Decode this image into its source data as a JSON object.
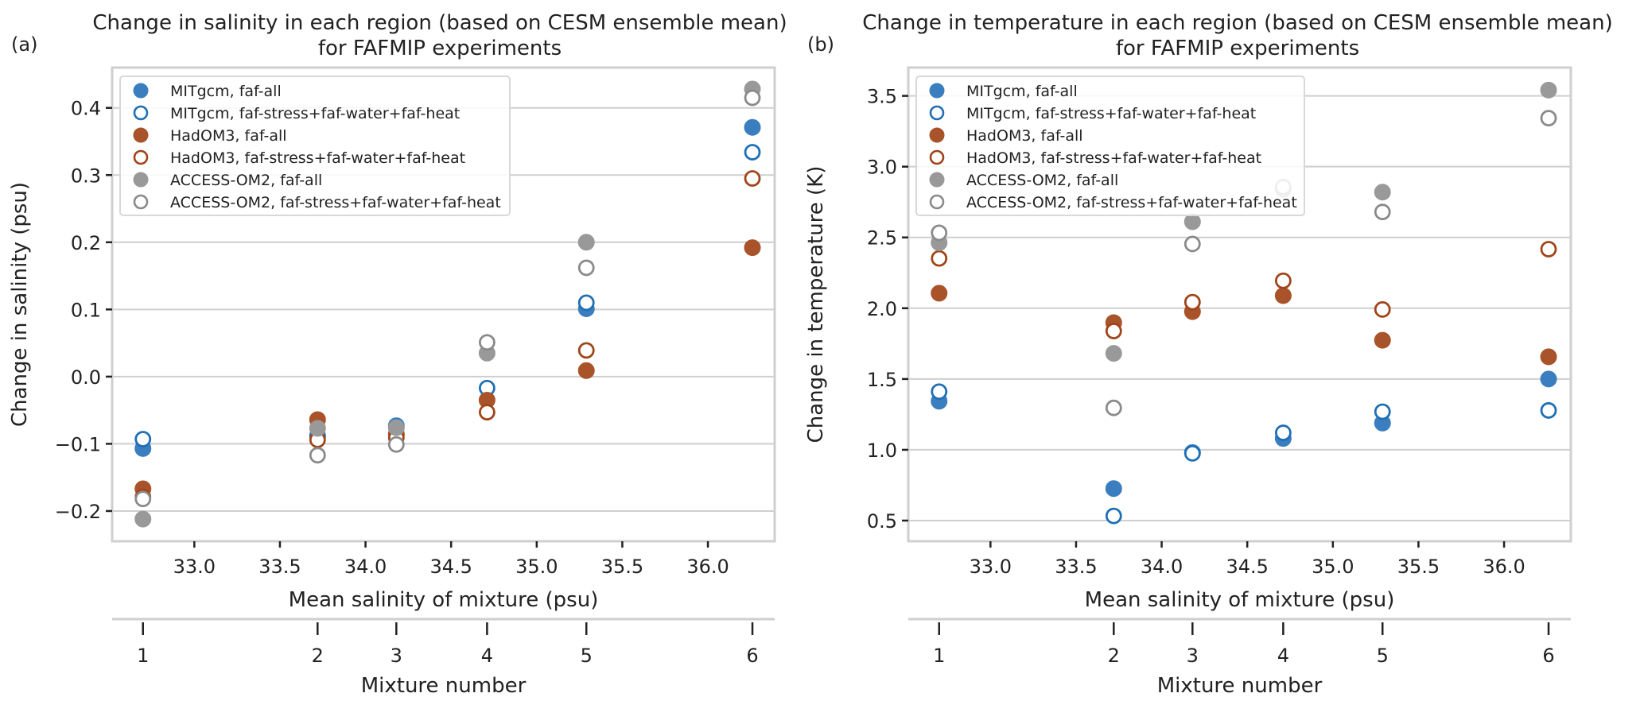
{
  "chart_data": [
    {
      "type": "scatter",
      "panel_label": "(a)",
      "title": "Change in salinity in each region (based on CESM ensemble mean)\nfor FAFMIP experiments",
      "title_lines": [
        "Change in salinity in each region (based on CESM ensemble mean)",
        "for FAFMIP experiments"
      ],
      "xlabel": "Mean salinity of mixture (psu)",
      "ylabel": "Change in salinity (psu)",
      "xlim": [
        32.52,
        36.39
      ],
      "ylim": [
        -0.245,
        0.46
      ],
      "xticks": [
        33.0,
        33.5,
        34.0,
        34.5,
        35.0,
        35.5,
        36.0
      ],
      "xtick_labels": [
        "33.0",
        "33.5",
        "34.0",
        "34.5",
        "35.0",
        "35.5",
        "36.0"
      ],
      "yticks": [
        -0.2,
        -0.1,
        0.0,
        0.1,
        0.2,
        0.3,
        0.4
      ],
      "ytick_labels": [
        "−0.2",
        "−0.1",
        "0.0",
        "0.1",
        "0.2",
        "0.3",
        "0.4"
      ],
      "grid": "horizontal",
      "legend_position": "top-left",
      "secondary_xaxis": {
        "label": "Mixture number",
        "ticks": [
          1,
          2,
          3,
          4,
          5,
          6
        ],
        "tick_labels": [
          "1",
          "2",
          "3",
          "4",
          "5",
          "6"
        ],
        "position": "bottom"
      },
      "x": [
        32.7,
        33.72,
        34.18,
        34.71,
        35.29,
        36.26
      ],
      "series": [
        {
          "name": "MITgcm, faf-all",
          "model": "MITgcm",
          "filled": true,
          "color": "#3a7ebf",
          "values": [
            -0.107,
            -0.088,
            -0.073,
            null,
            0.101,
            0.371
          ]
        },
        {
          "name": "MITgcm, faf-stress+faf-water+faf-heat",
          "model": "MITgcm",
          "filled": false,
          "color": "#1f6fb4",
          "values": [
            -0.093,
            -0.09,
            -0.085,
            -0.017,
            0.11,
            0.334
          ]
        },
        {
          "name": "HadOM3, faf-all",
          "model": "HadOM3",
          "filled": true,
          "color": "#a9532a",
          "values": [
            -0.167,
            -0.064,
            -0.086,
            -0.035,
            0.009,
            0.192
          ]
        },
        {
          "name": "HadOM3, faf-stress+faf-water+faf-heat",
          "model": "HadOM3",
          "filled": false,
          "color": "#a0451a",
          "values": [
            -0.179,
            -0.094,
            -0.091,
            -0.053,
            0.039,
            0.295
          ]
        },
        {
          "name": "ACCESS-OM2, faf-all",
          "model": "ACCESS-OM2",
          "filled": true,
          "color": "#999999",
          "values": [
            -0.212,
            -0.077,
            -0.076,
            0.035,
            0.2,
            0.428
          ]
        },
        {
          "name": "ACCESS-OM2, faf-stress+faf-water+faf-heat",
          "model": "ACCESS-OM2",
          "filled": false,
          "color": "#8a8a8a",
          "values": [
            -0.182,
            -0.117,
            -0.101,
            0.051,
            0.162,
            0.415
          ]
        }
      ]
    },
    {
      "type": "scatter",
      "panel_label": "(b)",
      "title": "Change in temperature in each region (based on CESM ensemble mean)\nfor FAFMIP experiments",
      "title_lines": [
        "Change in temperature in each region (based on CESM ensemble mean)",
        "for FAFMIP experiments"
      ],
      "xlabel": "Mean salinity of mixture (psu)",
      "ylabel": "Change in temperature (K)",
      "xlim": [
        32.52,
        36.39
      ],
      "ylim": [
        0.354,
        3.7
      ],
      "xticks": [
        33.0,
        33.5,
        34.0,
        34.5,
        35.0,
        35.5,
        36.0
      ],
      "xtick_labels": [
        "33.0",
        "33.5",
        "34.0",
        "34.5",
        "35.0",
        "35.5",
        "36.0"
      ],
      "yticks": [
        0.5,
        1.0,
        1.5,
        2.0,
        2.5,
        3.0,
        3.5
      ],
      "ytick_labels": [
        "0.5",
        "1.0",
        "1.5",
        "2.0",
        "2.5",
        "3.0",
        "3.5"
      ],
      "grid": "horizontal",
      "legend_position": "top-left",
      "secondary_xaxis": {
        "label": "Mixture number",
        "ticks": [
          1,
          2,
          3,
          4,
          5,
          6
        ],
        "tick_labels": [
          "1",
          "2",
          "3",
          "4",
          "5",
          "6"
        ],
        "position": "bottom"
      },
      "x": [
        32.7,
        33.72,
        34.18,
        34.71,
        35.29,
        36.26
      ],
      "series": [
        {
          "name": "MITgcm, faf-all",
          "model": "MITgcm",
          "filled": true,
          "color": "#3a7ebf",
          "values": [
            1.343,
            0.726,
            0.981,
            1.08,
            1.189,
            1.5
          ]
        },
        {
          "name": "MITgcm, faf-stress+faf-water+faf-heat",
          "model": "MITgcm",
          "filled": false,
          "color": "#1f6fb4",
          "values": [
            1.411,
            0.533,
            0.975,
            1.12,
            1.269,
            1.278
          ]
        },
        {
          "name": "HadOM3, faf-all",
          "model": "HadOM3",
          "filled": true,
          "color": "#a9532a",
          "values": [
            2.106,
            1.898,
            1.976,
            2.089,
            1.774,
            1.657
          ]
        },
        {
          "name": "HadOM3, faf-stress+faf-water+faf-heat",
          "model": "HadOM3",
          "filled": false,
          "color": "#a0451a",
          "values": [
            2.352,
            1.839,
            2.043,
            2.194,
            1.991,
            2.417
          ]
        },
        {
          "name": "ACCESS-OM2, faf-all",
          "model": "ACCESS-OM2",
          "filled": true,
          "color": "#999999",
          "values": [
            2.463,
            1.681,
            2.611,
            2.84,
            2.82,
            3.541
          ]
        },
        {
          "name": "ACCESS-OM2, faf-stress+faf-water+faf-heat",
          "model": "ACCESS-OM2",
          "filled": false,
          "color": "#8a8a8a",
          "values": [
            2.533,
            1.296,
            2.454,
            2.856,
            2.68,
            3.343
          ]
        }
      ]
    }
  ]
}
